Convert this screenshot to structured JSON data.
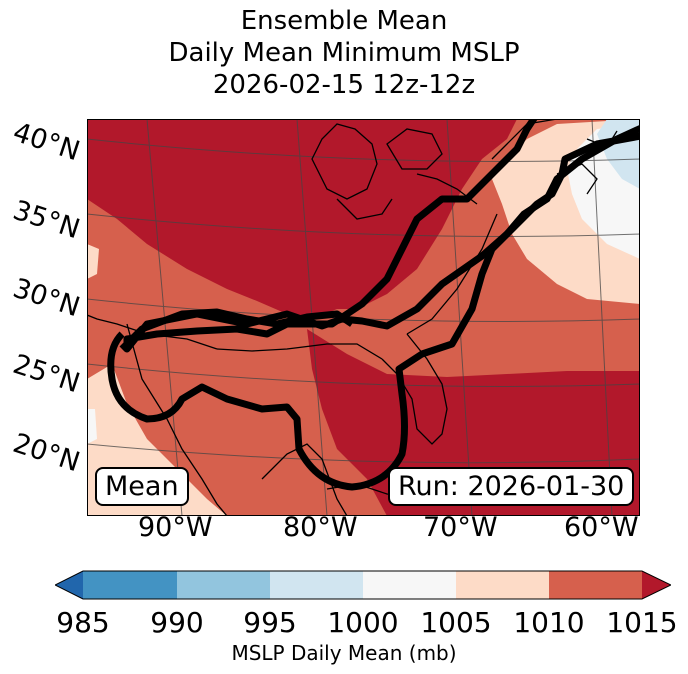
{
  "title": {
    "line1": "Ensemble Mean",
    "line2": "Daily Mean Minimum MSLP",
    "line3": "2026-02-15 12z-12z"
  },
  "map": {
    "lat_labels": [
      "40°N",
      "35°N",
      "30°N",
      "25°N",
      "20°N"
    ],
    "lon_labels": [
      "90°W",
      "80°W",
      "70°W",
      "60°W"
    ],
    "mean_label": "Mean",
    "run_label": "Run: 2026-01-30",
    "contour_level": 1010
  },
  "colorbar": {
    "ticks": [
      "985",
      "990",
      "995",
      "1000",
      "1005",
      "1010",
      "1015"
    ],
    "label": "MSLP Daily Mean (mb)",
    "colors": {
      "below": "#2166ac",
      "985-990": "#4393c3",
      "990-995": "#92c5de",
      "995-1000": "#d1e5f0",
      "1000-1005": "#f7f7f7",
      "1005-1010": "#fddbc7",
      "1010-1015": "#d6604d",
      "above": "#b2182b"
    }
  }
}
